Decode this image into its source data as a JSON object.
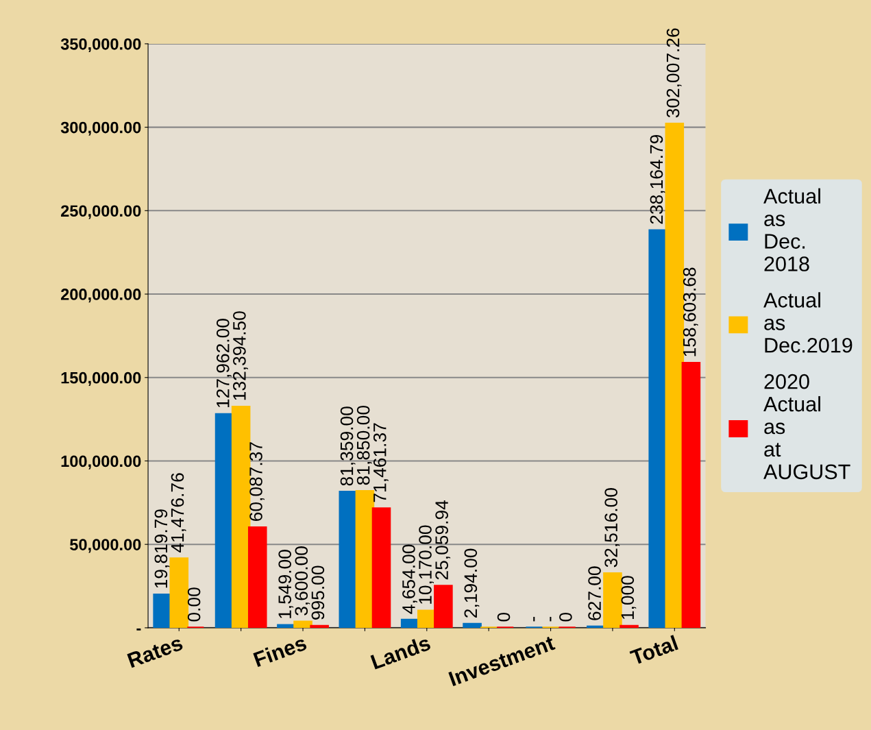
{
  "chart_data": {
    "type": "bar",
    "categories": [
      "Rates",
      null,
      "Fines",
      null,
      "Lands",
      null,
      "Investment",
      null,
      "Total"
    ],
    "series": [
      {
        "name": "Actual as Dec. 2018",
        "color": "#0070c0",
        "values": [
          19819.79,
          127962.0,
          1549.0,
          81359.0,
          4654.0,
          2194.0,
          0,
          627.0,
          238164.79
        ],
        "value_labels": [
          "19,819.79",
          "127,962.00",
          "1,549.00",
          "81,359.00",
          "4,654.00",
          "2,194.00",
          "-",
          "627.00",
          "238,164.79"
        ]
      },
      {
        "name": "Actual as Dec.2019",
        "color": "#ffc000",
        "values": [
          41476.76,
          132394.5,
          3600.0,
          81850.0,
          10170.0,
          0,
          0,
          32516.0,
          302007.26
        ],
        "value_labels": [
          "41,476.76",
          "132,394.50",
          "3,600.00",
          "81,850.00",
          "10,170.00",
          null,
          "-",
          "32,516.00",
          "302,007.26"
        ]
      },
      {
        "name": "2020 Actual as at AUGUST",
        "color": "#ff0000",
        "values": [
          0.0,
          60087.37,
          995.0,
          71461.37,
          25059.94,
          0,
          0,
          1000,
          158603.68
        ],
        "value_labels": [
          "0.00",
          "60,087.37",
          "995.00",
          "71,461.37",
          "25,059.94",
          "0",
          "0",
          "1,000",
          "158,603.68"
        ]
      }
    ],
    "ylim": [
      0,
      350000
    ],
    "yticks": [
      {
        "value": 0,
        "label": "-"
      },
      {
        "value": 50000,
        "label": "50,000.00"
      },
      {
        "value": 100000,
        "label": "100,000.00"
      },
      {
        "value": 150000,
        "label": "150,000.00"
      },
      {
        "value": 200000,
        "label": "200,000.00"
      },
      {
        "value": 250000,
        "label": "250,000.00"
      },
      {
        "value": 300000,
        "label": "300,000.00"
      },
      {
        "value": 350000,
        "label": "350,000.00"
      }
    ],
    "grid": "y",
    "legend": "right"
  }
}
